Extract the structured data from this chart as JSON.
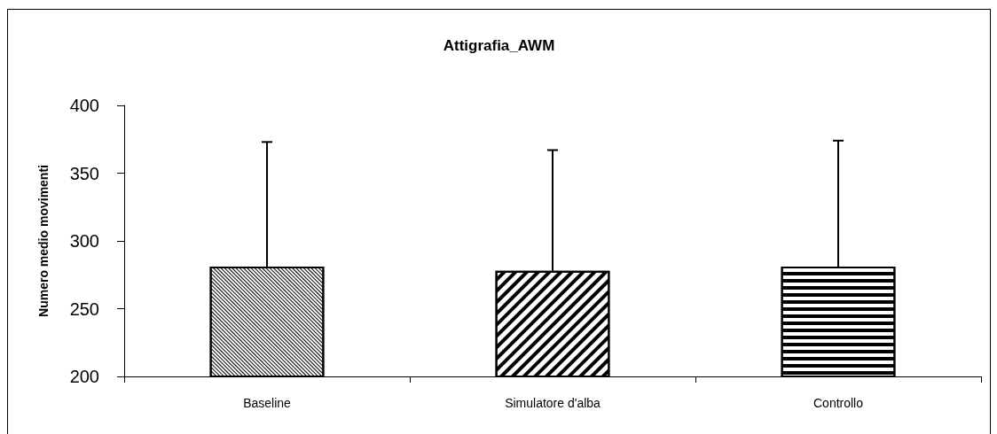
{
  "chart_data": {
    "type": "bar",
    "title": "Attigrafia_AWM",
    "ylabel": "Numero medio movimenti",
    "categories": [
      "Baseline",
      "Simulatore d'alba",
      "Controllo"
    ],
    "values": [
      281,
      278,
      281
    ],
    "color": "#000000",
    "errors": [
      [
        281,
        373
      ],
      [
        278,
        367
      ],
      [
        281,
        374
      ]
    ],
    "ylim": [
      200,
      400
    ],
    "yticks": [
      200,
      250,
      300,
      350,
      400
    ]
  }
}
